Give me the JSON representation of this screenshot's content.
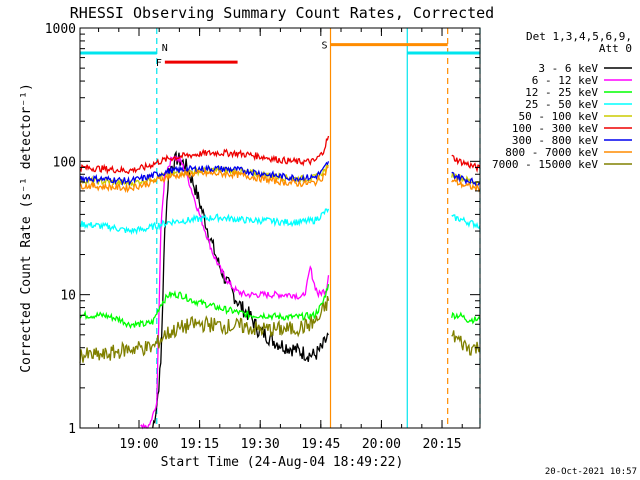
{
  "chart_data": {
    "type": "line",
    "title": "RHESSI Observing Summary Count Rates, Corrected",
    "xlabel": "Start Time (24-Aug-04 18:49:22)",
    "ylabel": "Corrected Count Rate (s⁻¹ detector⁻¹)",
    "x_unit": "minutes after 18:49:22",
    "xlim": [
      -4,
      95
    ],
    "ylim": [
      1,
      1000
    ],
    "y_scale": "log",
    "x_ticks": [
      {
        "x": 10.6,
        "label": "19:00"
      },
      {
        "x": 25.6,
        "label": "19:15"
      },
      {
        "x": 40.6,
        "label": "19:30"
      },
      {
        "x": 55.6,
        "label": "19:45"
      },
      {
        "x": 70.6,
        "label": "20:00"
      },
      {
        "x": 85.6,
        "label": "20:15"
      }
    ],
    "y_ticks": [
      {
        "y": 1,
        "label": "1"
      },
      {
        "y": 10,
        "label": "10"
      },
      {
        "y": 100,
        "label": "100"
      },
      {
        "y": 1000,
        "label": "1000"
      }
    ],
    "legend": {
      "position": "right",
      "header": [
        "Det 1,3,4,5,6,9,",
        "Att 0"
      ]
    },
    "flags": [
      {
        "label": "N",
        "color": "#00e5ee",
        "y": 650,
        "segments": [
          [
            -4,
            15
          ],
          [
            77,
            95
          ]
        ]
      },
      {
        "label": "F",
        "color": "#ee0000",
        "y": 555,
        "segments": [
          [
            17,
            35
          ]
        ]
      },
      {
        "label": "S",
        "color": "#ff8c00",
        "y": 750,
        "segments": [
          [
            58,
            87
          ]
        ]
      }
    ],
    "vlines": [
      {
        "x": 15,
        "color": "#00e5ee",
        "dashed": true
      },
      {
        "x": 58,
        "color": "#ff8c00",
        "dashed": false
      },
      {
        "x": 77,
        "color": "#00e5ee",
        "dashed": false
      },
      {
        "x": 87,
        "color": "#ff8c00",
        "dashed": true
      },
      {
        "x": 95,
        "color": "#00e5ee",
        "dashed": true
      }
    ],
    "series": [
      {
        "name": "3 - 6 keV",
        "color": "#000000",
        "segments": [
          [
            [
              14,
              1
            ],
            [
              15,
              1.5
            ],
            [
              16,
              3
            ],
            [
              17,
              30
            ],
            [
              18,
              85
            ],
            [
              20,
              105
            ],
            [
              22,
              95
            ],
            [
              24,
              70
            ],
            [
              26,
              45
            ],
            [
              28,
              28
            ],
            [
              30,
              18
            ],
            [
              32,
              13
            ],
            [
              34,
              10
            ],
            [
              36,
              8
            ],
            [
              38,
              7
            ],
            [
              40,
              5.5
            ],
            [
              42,
              5
            ],
            [
              44,
              4.5
            ],
            [
              46,
              4.2
            ],
            [
              48,
              4
            ],
            [
              50,
              3.8
            ],
            [
              52,
              3.6
            ],
            [
              54,
              3.5
            ],
            [
              56,
              4
            ],
            [
              57.5,
              5
            ]
          ]
        ]
      },
      {
        "name": "6 - 12 keV",
        "color": "#ff00ff",
        "segments": [
          [
            [
              11,
              1
            ],
            [
              13,
              1
            ],
            [
              15,
              1.5
            ],
            [
              16,
              30
            ],
            [
              17,
              80
            ],
            [
              19,
              110
            ],
            [
              21,
              100
            ],
            [
              23,
              70
            ],
            [
              25,
              45
            ],
            [
              27,
              30
            ],
            [
              29,
              20
            ],
            [
              31,
              15
            ],
            [
              33,
              12
            ],
            [
              35,
              10.5
            ],
            [
              37,
              10
            ],
            [
              40,
              10
            ],
            [
              43,
              10
            ],
            [
              46,
              10
            ],
            [
              49,
              10
            ],
            [
              51,
              9.5
            ],
            [
              52,
              11
            ],
            [
              53,
              16
            ],
            [
              54,
              12
            ],
            [
              55,
              10
            ],
            [
              57,
              11
            ],
            [
              57.5,
              14
            ]
          ]
        ]
      },
      {
        "name": "12 - 25 keV",
        "color": "#00ff00",
        "segments": [
          [
            [
              -4,
              7
            ],
            [
              2,
              7
            ],
            [
              6,
              6.5
            ],
            [
              8,
              6
            ],
            [
              12,
              6
            ],
            [
              14,
              6.2
            ],
            [
              16,
              8.5
            ],
            [
              18,
              10
            ],
            [
              21,
              10
            ],
            [
              24,
              9
            ],
            [
              27,
              8.5
            ],
            [
              30,
              8
            ],
            [
              34,
              7.5
            ],
            [
              38,
              7
            ],
            [
              42,
              7
            ],
            [
              46,
              6.8
            ],
            [
              50,
              6.8
            ],
            [
              54,
              7
            ],
            [
              56,
              8.5
            ],
            [
              57.5,
              12
            ]
          ],
          [
            [
              88,
              7
            ],
            [
              90,
              7
            ],
            [
              92,
              6.5
            ],
            [
              95,
              6.5
            ]
          ]
        ]
      },
      {
        "name": "25 - 50 keV",
        "color": "#00ffff",
        "segments": [
          [
            [
              -4,
              34
            ],
            [
              4,
              32
            ],
            [
              8,
              30
            ],
            [
              12,
              31
            ],
            [
              15,
              33
            ],
            [
              18,
              35
            ],
            [
              22,
              36
            ],
            [
              26,
              37
            ],
            [
              30,
              38
            ],
            [
              34,
              37
            ],
            [
              38,
              36
            ],
            [
              42,
              36
            ],
            [
              46,
              35
            ],
            [
              50,
              35
            ],
            [
              54,
              36
            ],
            [
              56,
              40
            ],
            [
              57.5,
              44
            ]
          ],
          [
            [
              88,
              38
            ],
            [
              90,
              37
            ],
            [
              92,
              35
            ],
            [
              95,
              33
            ]
          ]
        ]
      },
      {
        "name": "50 - 100 keV",
        "color": "#cccc00",
        "segments": [
          [
            [
              -4,
              72
            ],
            [
              4,
              70
            ],
            [
              8,
              68
            ],
            [
              12,
              72
            ],
            [
              15,
              76
            ],
            [
              18,
              80
            ],
            [
              22,
              83
            ],
            [
              26,
              85
            ],
            [
              30,
              86
            ],
            [
              34,
              85
            ],
            [
              38,
              82
            ],
            [
              42,
              79
            ],
            [
              46,
              76
            ],
            [
              50,
              74
            ],
            [
              54,
              75
            ],
            [
              56,
              82
            ],
            [
              57.5,
              92
            ]
          ],
          [
            [
              88,
              80
            ],
            [
              90,
              76
            ],
            [
              92,
              72
            ],
            [
              95,
              68
            ]
          ]
        ]
      },
      {
        "name": "100 - 300 keV",
        "color": "#ee0000",
        "segments": [
          [
            [
              -4,
              90
            ],
            [
              4,
              87
            ],
            [
              8,
              85
            ],
            [
              12,
              90
            ],
            [
              15,
              98
            ],
            [
              18,
              105
            ],
            [
              22,
              110
            ],
            [
              26,
              114
            ],
            [
              30,
              116
            ],
            [
              34,
              115
            ],
            [
              38,
              112
            ],
            [
              42,
              107
            ],
            [
              46,
              102
            ],
            [
              50,
              99
            ],
            [
              54,
              100
            ],
            [
              56,
              115
            ],
            [
              57.5,
              155
            ]
          ],
          [
            [
              88,
              108
            ],
            [
              90,
              100
            ],
            [
              92,
              95
            ],
            [
              95,
              88
            ]
          ]
        ]
      },
      {
        "name": "300 - 800 keV",
        "color": "#0000ee",
        "segments": [
          [
            [
              -4,
              75
            ],
            [
              4,
              73
            ],
            [
              8,
              71
            ],
            [
              12,
              75
            ],
            [
              15,
              80
            ],
            [
              18,
              84
            ],
            [
              22,
              87
            ],
            [
              26,
              88
            ],
            [
              30,
              88
            ],
            [
              34,
              87
            ],
            [
              38,
              84
            ],
            [
              42,
              80
            ],
            [
              46,
              77
            ],
            [
              50,
              75
            ],
            [
              54,
              76
            ],
            [
              56,
              84
            ],
            [
              57.5,
              100
            ]
          ],
          [
            [
              88,
              80
            ],
            [
              90,
              76
            ],
            [
              92,
              72
            ],
            [
              95,
              68
            ]
          ]
        ]
      },
      {
        "name": "800 - 7000 keV",
        "color": "#ff8c00",
        "segments": [
          [
            [
              -4,
              66
            ],
            [
              4,
              64
            ],
            [
              8,
              63
            ],
            [
              12,
              67
            ],
            [
              15,
              72
            ],
            [
              18,
              77
            ],
            [
              22,
              80
            ],
            [
              26,
              81
            ],
            [
              30,
              81
            ],
            [
              34,
              80
            ],
            [
              38,
              77
            ],
            [
              42,
              73
            ],
            [
              46,
              70
            ],
            [
              50,
              68
            ],
            [
              54,
              69
            ],
            [
              56,
              76
            ],
            [
              57.5,
              90
            ]
          ],
          [
            [
              88,
              72
            ],
            [
              90,
              68
            ],
            [
              92,
              65
            ],
            [
              95,
              62
            ]
          ]
        ]
      },
      {
        "name": "7000 - 15000 keV",
        "color": "#808000",
        "segments": [
          [
            [
              -4,
              3.5
            ],
            [
              2,
              3.5
            ],
            [
              6,
              3.8
            ],
            [
              10,
              4
            ],
            [
              14,
              4
            ],
            [
              15,
              4.3
            ],
            [
              17,
              5
            ],
            [
              20,
              5.5
            ],
            [
              24,
              6
            ],
            [
              28,
              6
            ],
            [
              32,
              5.8
            ],
            [
              36,
              5.8
            ],
            [
              40,
              5.5
            ],
            [
              44,
              5.5
            ],
            [
              48,
              5.5
            ],
            [
              52,
              5.8
            ],
            [
              55,
              6.5
            ],
            [
              57.5,
              9
            ]
          ],
          [
            [
              88,
              5
            ],
            [
              90,
              4.5
            ],
            [
              92,
              4
            ],
            [
              95,
              4
            ]
          ]
        ]
      }
    ]
  },
  "timestamp": "20-Oct-2021 10:57"
}
